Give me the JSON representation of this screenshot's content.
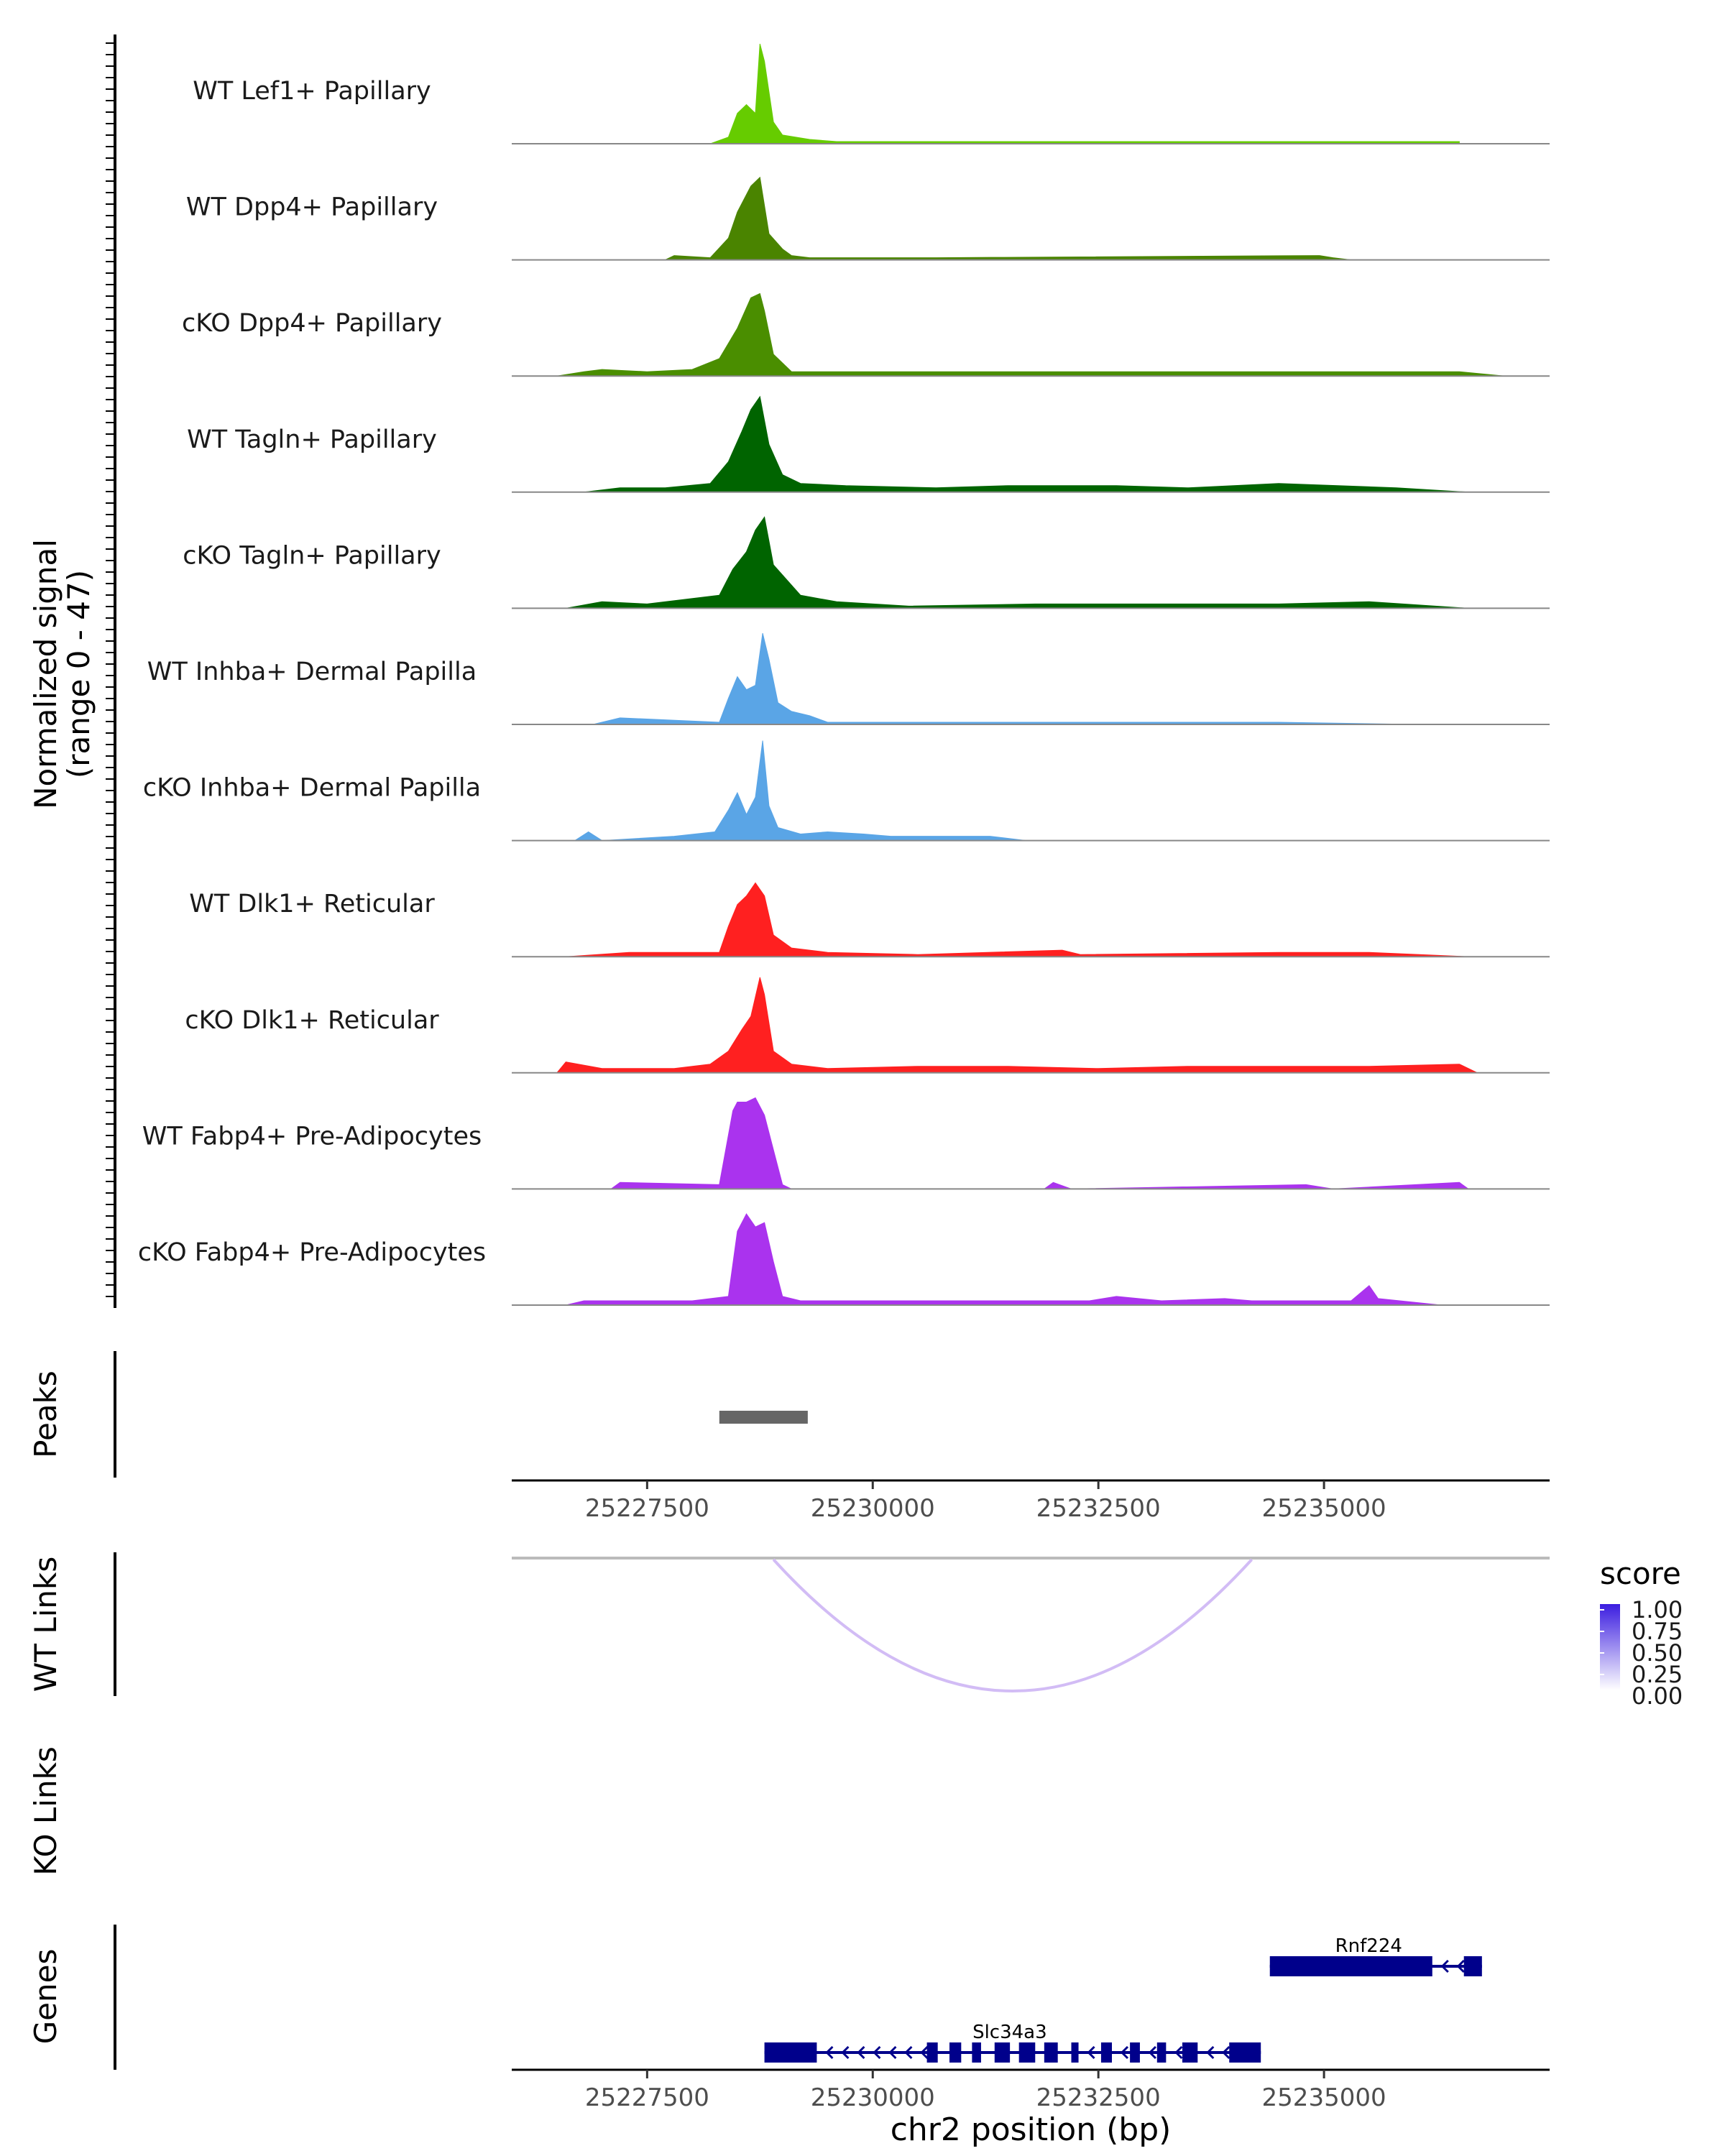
{
  "chart_data": {
    "type": "area",
    "title": "",
    "chromosome": "chr2",
    "xlabel": "chr2 position (bp)",
    "xlim": [
      25226000,
      25237500
    ],
    "x_ticks": [
      25227500,
      25230000,
      25232500,
      25235000
    ],
    "x_tick_labels": [
      "25227500",
      "25230000",
      "25232500",
      "25235000"
    ],
    "coverage": {
      "ylabel_line1": "Normalized signal",
      "ylabel_line2": "(range 0 - 47)",
      "ylim": [
        0,
        47
      ],
      "tracks": [
        {
          "name": "WT Lef1+ Papillary",
          "color": "#66cc00",
          "x": [
            25228200,
            25228400,
            25228500,
            25228600,
            25228700,
            25228750,
            25228800,
            25228900,
            25229000,
            25229300,
            25229600,
            25236500
          ],
          "y": [
            0,
            3,
            14,
            18,
            14,
            46,
            38,
            10,
            4,
            2,
            1,
            1
          ]
        },
        {
          "name": "WT Dpp4+ Papillary",
          "color": "#4a8400",
          "x": [
            25227700,
            25227800,
            25228200,
            25228400,
            25228500,
            25228650,
            25228750,
            25228850,
            25229000,
            25229100,
            25229300,
            25230700,
            25234950,
            25235100,
            25235300
          ],
          "y": [
            0,
            2,
            1,
            10,
            22,
            34,
            38,
            12,
            5,
            2,
            1,
            1,
            2,
            1,
            0
          ]
        },
        {
          "name": "cKO Dpp4+ Papillary",
          "color": "#4a8e00",
          "x": [
            25226500,
            25226800,
            25227000,
            25227500,
            25228000,
            25228300,
            25228500,
            25228650,
            25228750,
            25228800,
            25228900,
            25229100,
            25230500,
            25232000,
            25233500,
            25235500,
            25236500,
            25237000
          ],
          "y": [
            0,
            2,
            3,
            2,
            3,
            8,
            22,
            36,
            38,
            30,
            10,
            2,
            2,
            2,
            2,
            2,
            2,
            0
          ]
        },
        {
          "name": "WT Tagln+ Papillary",
          "color": "#006400",
          "x": [
            25226800,
            25227200,
            25227700,
            25228200,
            25228400,
            25228550,
            25228650,
            25228750,
            25228850,
            25229000,
            25229200,
            25229700,
            25230700,
            25231500,
            25232000,
            25232700,
            25233500,
            25234500,
            25235800,
            25236600
          ],
          "y": [
            0,
            2,
            2,
            4,
            14,
            28,
            38,
            44,
            22,
            8,
            4,
            3,
            2,
            3,
            3,
            3,
            2,
            4,
            2,
            0
          ]
        },
        {
          "name": "cKO Tagln+ Papillary",
          "color": "#006400",
          "x": [
            25226600,
            25227000,
            25227500,
            25228300,
            25228450,
            25228600,
            25228700,
            25228800,
            25228900,
            25229200,
            25229600,
            25230400,
            25231800,
            25232700,
            25234500,
            25235500,
            25236600
          ],
          "y": [
            0,
            3,
            2,
            6,
            18,
            26,
            36,
            42,
            20,
            6,
            3,
            1,
            2,
            2,
            2,
            3,
            0
          ]
        },
        {
          "name": "WT Inhba+ Dermal Papilla",
          "color": "#5aa5e6",
          "x": [
            25226900,
            25227200,
            25228300,
            25228400,
            25228500,
            25228600,
            25228700,
            25228780,
            25228850,
            25228950,
            25229100,
            25229300,
            25229500,
            25230000,
            25231500,
            25233000,
            25234500,
            25236000
          ],
          "y": [
            0,
            3,
            1,
            12,
            22,
            16,
            18,
            42,
            30,
            10,
            6,
            4,
            1,
            1,
            1,
            1,
            1,
            0
          ]
        },
        {
          "name": "cKO Inhba+ Dermal Papilla",
          "color": "#5aa5e6",
          "x": [
            25226700,
            25226850,
            25227000,
            25227800,
            25228250,
            25228400,
            25228500,
            25228600,
            25228700,
            25228780,
            25228850,
            25228950,
            25229200,
            25229500,
            25229900,
            25230200,
            25231300,
            25231700
          ],
          "y": [
            0,
            4,
            0,
            2,
            4,
            14,
            22,
            12,
            20,
            46,
            16,
            6,
            3,
            4,
            3,
            2,
            2,
            0
          ]
        },
        {
          "name": "WT Dlk1+ Reticular",
          "color": "#ff2020",
          "x": [
            25226600,
            25227300,
            25228300,
            25228400,
            25228500,
            25228600,
            25228700,
            25228800,
            25228900,
            25229100,
            25229500,
            25230500,
            25232100,
            25232300,
            25234500,
            25235500,
            25236600
          ],
          "y": [
            0,
            2,
            2,
            14,
            24,
            28,
            34,
            28,
            10,
            4,
            2,
            1,
            3,
            1,
            2,
            2,
            0
          ]
        },
        {
          "name": "cKO Dlk1+ Reticular",
          "color": "#ff2020",
          "x": [
            25226500,
            25226600,
            25227000,
            25227800,
            25228200,
            25228400,
            25228550,
            25228650,
            25228750,
            25228800,
            25228900,
            25229100,
            25229500,
            25230500,
            25231500,
            25232500,
            25233500,
            25234500,
            25235500,
            25236500,
            25236700
          ],
          "y": [
            0,
            5,
            2,
            2,
            4,
            10,
            20,
            26,
            44,
            36,
            10,
            4,
            2,
            3,
            3,
            2,
            3,
            3,
            3,
            4,
            0
          ]
        },
        {
          "name": "WT Fabp4+ Pre-Adipocytes",
          "color": "#aa33ee",
          "x": [
            25227100,
            25227200,
            25228300,
            25228450,
            25228500,
            25228600,
            25228700,
            25228800,
            25228900,
            25229000,
            25229100,
            25231900,
            25232000,
            25232200,
            25234800,
            25235100,
            25236500,
            25236600
          ],
          "y": [
            0,
            3,
            2,
            36,
            40,
            40,
            42,
            34,
            18,
            2,
            0,
            0,
            3,
            0,
            2,
            0,
            3,
            0
          ]
        },
        {
          "name": "cKO Fabp4+ Pre-Adipocytes",
          "color": "#aa33ee",
          "x": [
            25226600,
            25226800,
            25227100,
            25228000,
            25228400,
            25228500,
            25228600,
            25228700,
            25228800,
            25228900,
            25229000,
            25229200,
            25232400,
            25232700,
            25233200,
            25233900,
            25234200,
            25235300,
            25235500,
            25235600,
            25236300
          ],
          "y": [
            0,
            2,
            2,
            2,
            4,
            34,
            42,
            36,
            38,
            20,
            4,
            2,
            2,
            4,
            2,
            3,
            2,
            2,
            9,
            3,
            0
          ]
        }
      ]
    },
    "peaks": {
      "label": "Peaks",
      "regions": [
        {
          "start": 25228300,
          "end": 25229280
        }
      ]
    },
    "wt_links": {
      "label": "WT Links",
      "links": [
        {
          "start": 25228900,
          "end": 25234200,
          "score": 0.3
        }
      ]
    },
    "ko_links": {
      "label": "KO Links",
      "links": []
    },
    "score_legend": {
      "title": "score",
      "breaks": [
        "1.00",
        "0.75",
        "0.50",
        "0.25",
        "0.00"
      ],
      "low_color": "#ffffff",
      "high_color": "#3b1de0"
    },
    "genes": {
      "label": "Genes",
      "items": [
        {
          "name": "Rnf224",
          "start": 25234400,
          "end": 25236750,
          "strand": "-",
          "row": 1,
          "exons": [
            [
              25234400,
              25236200
            ],
            [
              25236550,
              25236750
            ]
          ]
        },
        {
          "name": "Slc34a3",
          "start": 25228800,
          "end": 25234300,
          "strand": "-",
          "row": 2,
          "exons": [
            [
              25228800,
              25229380
            ],
            [
              25230600,
              25230720
            ],
            [
              25230850,
              25230980
            ],
            [
              25231100,
              25231200
            ],
            [
              25231350,
              25231520
            ],
            [
              25231620,
              25231800
            ],
            [
              25231900,
              25232050
            ],
            [
              25232200,
              25232280
            ],
            [
              25232530,
              25232650
            ],
            [
              25232850,
              25232960
            ],
            [
              25233150,
              25233250
            ],
            [
              25233430,
              25233600
            ],
            [
              25233950,
              25234300
            ]
          ]
        }
      ]
    }
  }
}
